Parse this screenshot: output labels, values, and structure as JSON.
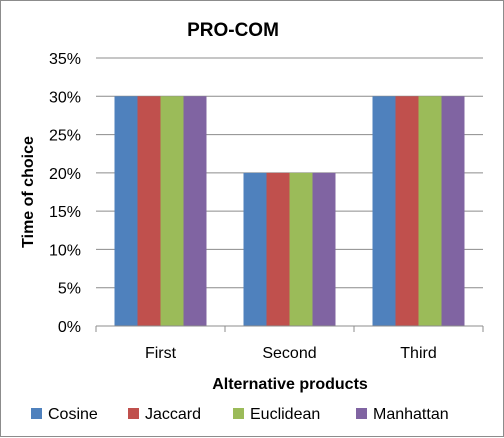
{
  "chart_data": {
    "type": "bar",
    "title": "PRO-COM",
    "xlabel": "Alternative products",
    "ylabel": "Time of choice",
    "categories": [
      "First",
      "Second",
      "Third"
    ],
    "series": [
      {
        "name": "Cosine",
        "color": "#4f81bd",
        "values": [
          30,
          20,
          30
        ]
      },
      {
        "name": "Jaccard",
        "color": "#c0504d",
        "values": [
          30,
          20,
          30
        ]
      },
      {
        "name": "Euclidean",
        "color": "#9bbb59",
        "values": [
          30,
          20,
          30
        ]
      },
      {
        "name": "Manhattan",
        "color": "#8064a2",
        "values": [
          30,
          20,
          30
        ]
      }
    ],
    "ylim": [
      0,
      35
    ],
    "yticks": [
      0,
      5,
      10,
      15,
      20,
      25,
      30,
      35
    ],
    "ytick_labels": [
      "0%",
      "5%",
      "10%",
      "15%",
      "20%",
      "25%",
      "30%",
      "35%"
    ],
    "grid": true,
    "legend_position": "bottom"
  }
}
